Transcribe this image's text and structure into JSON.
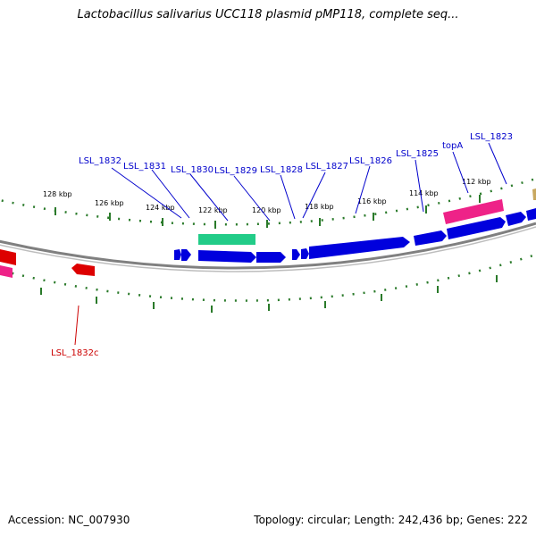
{
  "title": "Lactobacillus salivarius UCC118 plasmid pMP118, complete seq...",
  "footer": {
    "accession": "Accession: NC_007930",
    "summary": "Topology: circular; Length: 242,436 bp; Genes: 222"
  },
  "colors": {
    "forward_cds": "#0000dd",
    "reverse_cds": "#dd0000",
    "rna": "#22cc88",
    "pink": "#ee2288",
    "backbone": "#808080",
    "ruler": "#2a7a2a",
    "label_forward": "#0000cc",
    "label_reverse": "#cc0000"
  },
  "ruler_labels": [
    "128 kbp",
    "126 kbp",
    "124 kbp",
    "122 kbp",
    "120 kbp",
    "118 kbp",
    "116 kbp",
    "114 kbp",
    "112 kbp"
  ],
  "gene_labels": {
    "forward": [
      "LSL_1832",
      "LSL_1831",
      "LSL_1830",
      "LSL_1829",
      "LSL_1828",
      "LSL_1827",
      "LSL_1826",
      "LSL_1825",
      "topA",
      "LSL_1823"
    ],
    "reverse": [
      "LSL_1832c"
    ]
  }
}
